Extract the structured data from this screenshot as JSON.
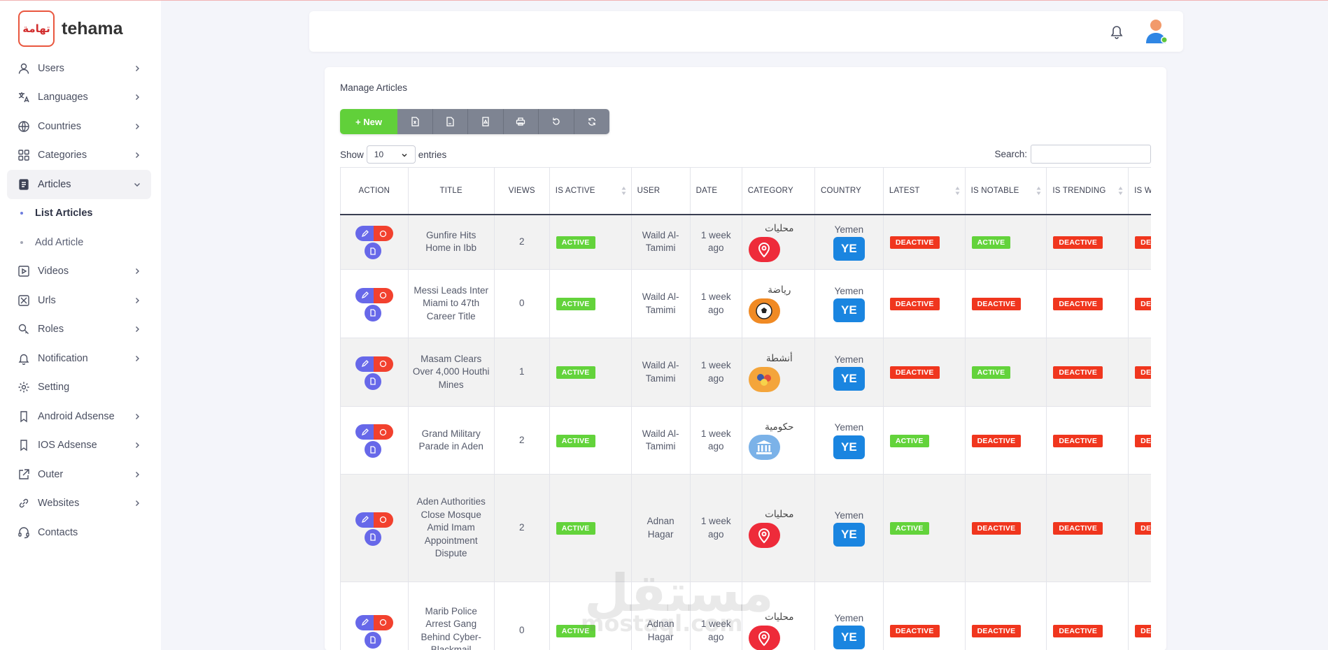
{
  "brand": {
    "logo_text": "تهامة",
    "name": "tehama"
  },
  "sidebar": {
    "items": [
      {
        "label": "Users",
        "icon": "user-icon",
        "has_arrow": true
      },
      {
        "label": "Languages",
        "icon": "translate-icon",
        "has_arrow": true
      },
      {
        "label": "Countries",
        "icon": "globe-icon",
        "has_arrow": true
      },
      {
        "label": "Categories",
        "icon": "grid-icon",
        "has_arrow": true
      },
      {
        "label": "Articles",
        "icon": "article-icon",
        "has_arrow": true,
        "expanded": true
      },
      {
        "label": "Videos",
        "icon": "video-icon",
        "has_arrow": true
      },
      {
        "label": "Urls",
        "icon": "x-logo-icon",
        "has_arrow": true
      },
      {
        "label": "Roles",
        "icon": "key-search-icon",
        "has_arrow": true
      },
      {
        "label": "Notification",
        "icon": "bell-icon",
        "has_arrow": true
      },
      {
        "label": "Setting",
        "icon": "gear-icon",
        "has_arrow": false
      },
      {
        "label": "Android Adsense",
        "icon": "bookmark-icon",
        "has_arrow": true
      },
      {
        "label": "IOS Adsense",
        "icon": "bookmark-icon",
        "has_arrow": true
      },
      {
        "label": "Outer",
        "icon": "external-link-icon",
        "has_arrow": true
      },
      {
        "label": "Websites",
        "icon": "link-icon",
        "has_arrow": true
      },
      {
        "label": "Contacts",
        "icon": "headset-icon",
        "has_arrow": false
      }
    ],
    "articles_sub": [
      {
        "label": "List Articles",
        "current": true
      },
      {
        "label": "Add Article",
        "current": false
      }
    ]
  },
  "page": {
    "title": "Manage Articles",
    "new_button": "+ New",
    "toolbar_icons": [
      "excel-icon",
      "csv-icon",
      "pdf-icon",
      "print-icon",
      "reset-icon",
      "reload-icon"
    ],
    "show_label": "Show",
    "entries_value": "10",
    "entries_label": "entries",
    "search_label": "Search:",
    "search_value": ""
  },
  "table": {
    "columns": [
      "Action",
      "Title",
      "Views",
      "Is Active",
      "User",
      "Date",
      "Category",
      "Country",
      "Latest",
      "Is Notable",
      "Is Trending",
      "Is Writin"
    ],
    "rows": [
      {
        "title": "Gunfire Hits Home in Ibb",
        "views": "2",
        "is_active": "ACTIVE",
        "user": "Waild Al-Tamimi",
        "date": "1 week ago",
        "category": "محليات",
        "category_icon": "location-pin-icon",
        "country": "Yemen",
        "flag": "YE",
        "latest": "DEACTIVE",
        "notable": "ACTIVE",
        "trending": "DEACTIVE",
        "writing": "DEACTIVE"
      },
      {
        "title": "Messi Leads Inter Miami to 47th Career Title",
        "views": "0",
        "is_active": "ACTIVE",
        "user": "Waild Al-Tamimi",
        "date": "1 week ago",
        "category": "رياضة",
        "category_icon": "soccer-ball-icon",
        "country": "Yemen",
        "flag": "YE",
        "latest": "DEACTIVE",
        "notable": "DEACTIVE",
        "trending": "DEACTIVE",
        "writing": "DEACTIVE"
      },
      {
        "title": "Masam Clears Over 4,000 Houthi Mines",
        "views": "1",
        "is_active": "ACTIVE",
        "user": "Waild Al-Tamimi",
        "date": "1 week ago",
        "category": "أنشطة",
        "category_icon": "activities-icon",
        "country": "Yemen",
        "flag": "YE",
        "latest": "DEACTIVE",
        "notable": "ACTIVE",
        "trending": "DEACTIVE",
        "writing": "DEACTIVE"
      },
      {
        "title": "Grand Military Parade in Aden",
        "views": "2",
        "is_active": "ACTIVE",
        "user": "Waild Al-Tamimi",
        "date": "1 week ago",
        "category": "حكومية",
        "category_icon": "government-building-icon",
        "country": "Yemen",
        "flag": "YE",
        "latest": "ACTIVE",
        "notable": "DEACTIVE",
        "trending": "DEACTIVE",
        "writing": "DEACTIVE"
      },
      {
        "title": "Aden Authorities Close Mosque Amid Imam Appointment Dispute",
        "views": "2",
        "is_active": "ACTIVE",
        "user": "Adnan Hagar",
        "date": "1 week ago",
        "category": "محليات",
        "category_icon": "location-pin-icon",
        "country": "Yemen",
        "flag": "YE",
        "latest": "ACTIVE",
        "notable": "DEACTIVE",
        "trending": "DEACTIVE",
        "writing": "DEACTIVE"
      },
      {
        "title": "Marib Police Arrest Gang Behind Cyber-Blackmail",
        "views": "0",
        "is_active": "ACTIVE",
        "user": "Adnan Hagar",
        "date": "1 week ago",
        "category": "محليات",
        "category_icon": "location-pin-icon",
        "country": "Yemen",
        "flag": "YE",
        "latest": "DEACTIVE",
        "notable": "DEACTIVE",
        "trending": "DEACTIVE",
        "writing": "DEACTIVE"
      }
    ]
  },
  "watermark": {
    "text": "مستقل",
    "sub": "mostaql.com"
  },
  "colors": {
    "active": "#63d33b",
    "deactive": "#f0361e",
    "new_button": "#61d03a",
    "toolbar": "#7e8492",
    "flag": "#1a85e0",
    "edit": "#6768e9"
  }
}
